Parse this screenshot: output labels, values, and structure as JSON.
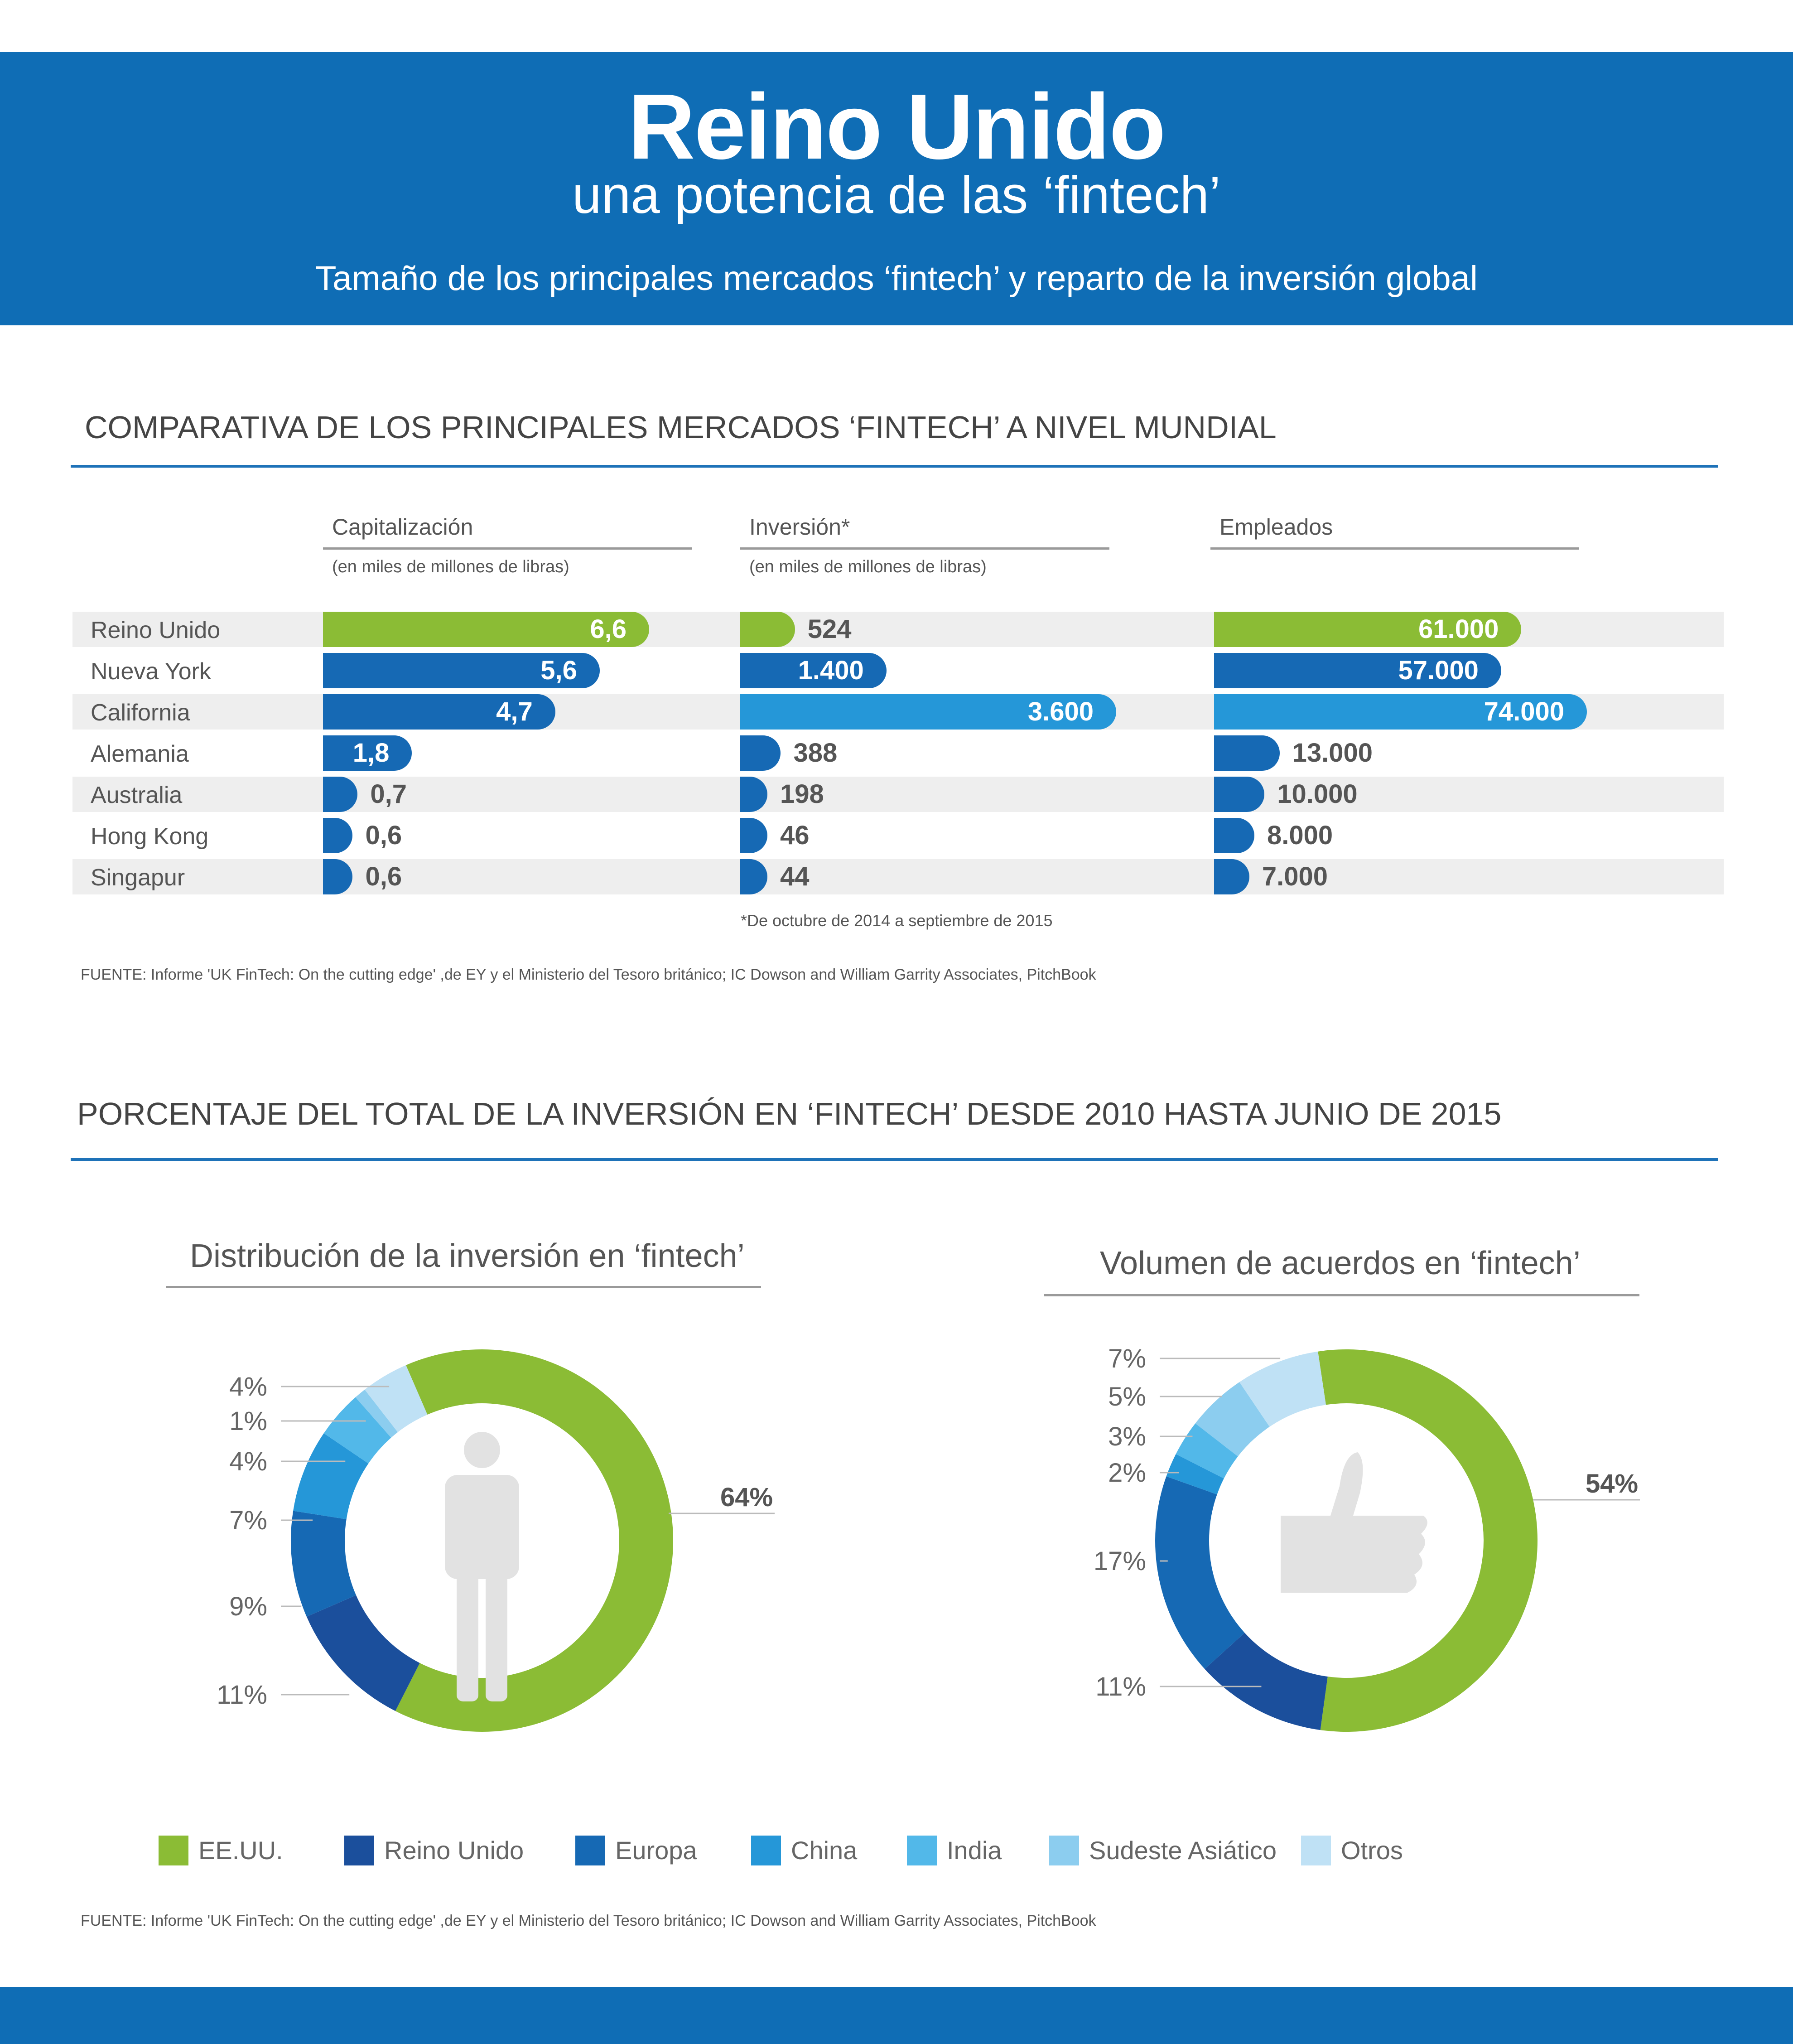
{
  "header": {
    "title": "Reino Unido",
    "subtitle": "una potencia de las ‘fintech’",
    "description": "Tamaño de los principales mercados ‘fintech’ y reparto de la inversión global"
  },
  "section1": {
    "title": "COMPARATIVA DE LOS PRINCIPALES MERCADOS ‘FINTECH’ A NIVEL MUNDIAL",
    "footnote": "*De octubre de 2014 a septiembre de 2015",
    "source": "FUENTE: Informe 'UK FinTech: On the cutting edge' ,de EY y el Ministerio del Tesoro británico; IC Dowson and William Garrity Associates, PitchBook"
  },
  "section2": {
    "title": "PORCENTAJE DEL TOTAL DE LA INVERSIÓN EN ‘FINTECH’ DESDE 2010 HASTA JUNIO DE 2015",
    "source": "FUENTE: Informe 'UK FinTech: On the cutting edge' ,de EY y el Ministerio del Tesoro británico; IC Dowson and William Garrity Associates, PitchBook"
  },
  "colors": {
    "header_blue": "#0f6db5",
    "green": "#8bbc35",
    "dark_blue": "#1b4f9c",
    "blue": "#1669b4",
    "light_blue": "#2597d8",
    "india": "#52b8e9",
    "sea": "#8ccdef",
    "otros": "#bfe1f5",
    "icon_gray": "#e2e2e2"
  },
  "chart_data": [
    {
      "type": "bar",
      "orientation": "horizontal",
      "categories": [
        "Reino Unido",
        "Nueva York",
        "California",
        "Alemania",
        "Australia",
        "Hong Kong",
        "Singapur"
      ],
      "series": [
        {
          "name": "Capitalización",
          "unit": "(en miles de millones de libras)",
          "values": [
            6.6,
            5.6,
            4.7,
            1.8,
            0.7,
            0.6,
            0.6
          ],
          "labels": [
            "6,6",
            "5,6",
            "4,7",
            "1,8",
            "0,7",
            "0,6",
            "0,6"
          ],
          "colors": [
            "#8bbc35",
            "#1669b4",
            "#1669b4",
            "#1669b4",
            "#1669b4",
            "#1669b4",
            "#1669b4"
          ]
        },
        {
          "name": "Inversión*",
          "unit": "(en miles de millones de libras)",
          "values": [
            524,
            1400,
            3600,
            388,
            198,
            46,
            44
          ],
          "labels": [
            "524",
            "1.400",
            "3.600",
            "388",
            "198",
            "46",
            "44"
          ],
          "colors": [
            "#8bbc35",
            "#1669b4",
            "#2597d8",
            "#1669b4",
            "#1669b4",
            "#1669b4",
            "#1669b4"
          ]
        },
        {
          "name": "Empleados",
          "unit": "",
          "values": [
            61000,
            57000,
            74000,
            13000,
            10000,
            8000,
            7000
          ],
          "labels": [
            "61.000",
            "57.000",
            "74.000",
            "13.000",
            "10.000",
            "8.000",
            "7.000"
          ],
          "colors": [
            "#8bbc35",
            "#1669b4",
            "#2597d8",
            "#1669b4",
            "#1669b4",
            "#1669b4",
            "#1669b4"
          ]
        }
      ]
    },
    {
      "type": "pie",
      "title": "Distribución de la inversión en ‘fintech’",
      "categories": [
        "EE.UU.",
        "Reino Unido",
        "Europa",
        "China",
        "India",
        "Sudeste Asiático",
        "Otros"
      ],
      "values": [
        64,
        11,
        9,
        7,
        4,
        1,
        4
      ],
      "labels": [
        "64%",
        "11%",
        "9%",
        "7%",
        "4%",
        "1%",
        "4%"
      ],
      "icon": "person-icon"
    },
    {
      "type": "pie",
      "title": "Volumen de acuerdos en ‘fintech’",
      "categories": [
        "EE.UU.",
        "Reino Unido",
        "Europa",
        "China",
        "India",
        "Sudeste Asiático",
        "Otros"
      ],
      "values": [
        54,
        11,
        17,
        2,
        3,
        5,
        7
      ],
      "labels": [
        "54%",
        "11%",
        "17%",
        "2%",
        "3%",
        "5%",
        "7%"
      ],
      "icon": "thumbs-up-icon"
    }
  ],
  "legend": [
    {
      "label": "EE.UU.",
      "color": "#8bbc35"
    },
    {
      "label": "Reino  Unido",
      "color": "#1b4f9c"
    },
    {
      "label": "Europa",
      "color": "#1669b4"
    },
    {
      "label": "China",
      "color": "#2597d8"
    },
    {
      "label": "India",
      "color": "#52b8e9"
    },
    {
      "label": "Sudeste Asiático",
      "color": "#8ccdef"
    },
    {
      "label": "Otros",
      "color": "#bfe1f5"
    }
  ]
}
